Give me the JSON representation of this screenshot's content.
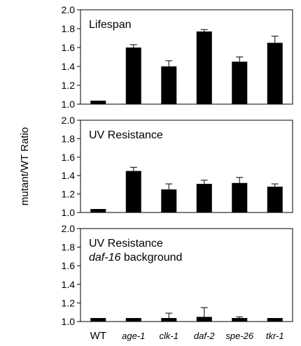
{
  "chart_data": {
    "ylabel": "mutant/WT Ratio",
    "categories": [
      "WT",
      "age-1",
      "clk-1",
      "daf-2",
      "spe-26",
      "tkr-1"
    ],
    "panels": [
      {
        "type": "bar",
        "title": "Lifespan",
        "title_line2": {
          "italic": "",
          "normal": ""
        },
        "ylim": [
          1.0,
          2.0
        ],
        "yticks": [
          "1.0",
          "1.2",
          "1.4",
          "1.6",
          "1.8",
          "2.0"
        ],
        "values": [
          1.0,
          1.6,
          1.4,
          1.77,
          1.45,
          1.65
        ],
        "errors": [
          0.0,
          0.03,
          0.06,
          0.02,
          0.05,
          0.07
        ]
      },
      {
        "type": "bar",
        "title": "UV Resistance",
        "title_line2": {
          "italic": "",
          "normal": ""
        },
        "ylim": [
          1.0,
          2.0
        ],
        "yticks": [
          "1.0",
          "1.2",
          "1.4",
          "1.6",
          "1.8",
          "2.0"
        ],
        "values": [
          1.0,
          1.45,
          1.25,
          1.31,
          1.32,
          1.28
        ],
        "errors": [
          0.0,
          0.04,
          0.06,
          0.04,
          0.06,
          0.03
        ]
      },
      {
        "type": "bar",
        "title": "UV Resistance",
        "title_line2": {
          "italic": "daf-16",
          "normal": " background"
        },
        "ylim": [
          1.0,
          2.0
        ],
        "yticks": [
          "1.0",
          "1.2",
          "1.4",
          "1.6",
          "1.8",
          "2.0"
        ],
        "values": [
          1.0,
          1.0,
          1.0,
          1.05,
          1.03,
          1.0
        ],
        "errors": [
          0.0,
          0.0,
          0.09,
          0.1,
          0.02,
          0.03
        ]
      }
    ]
  }
}
